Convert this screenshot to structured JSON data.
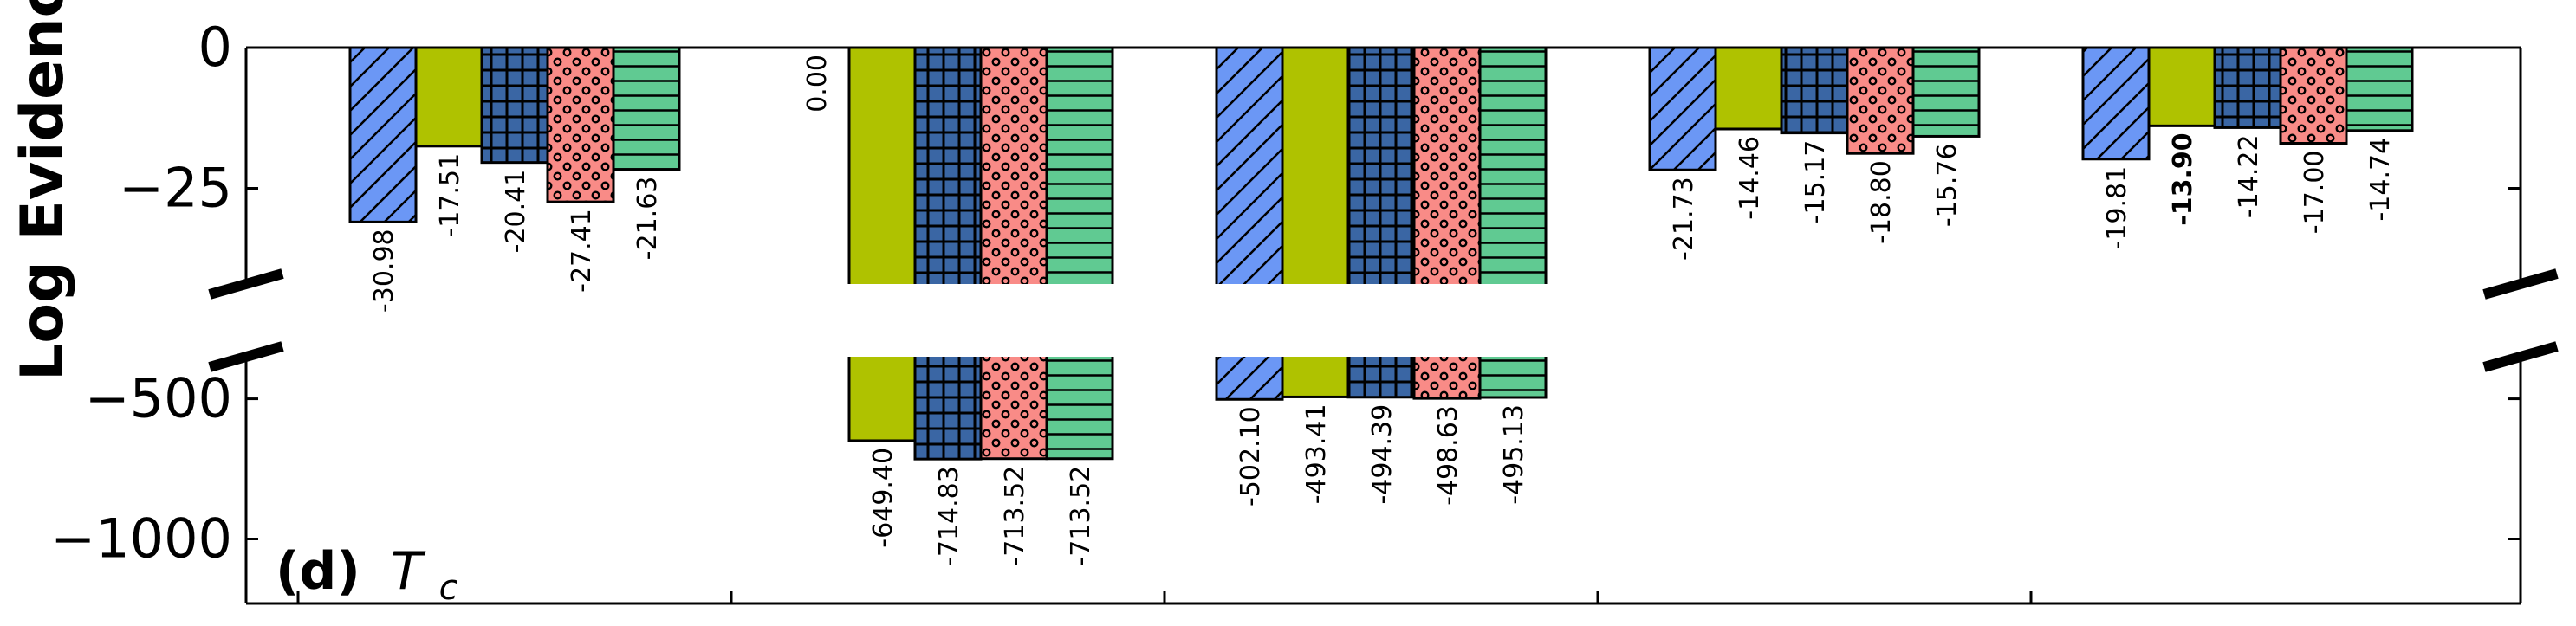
{
  "chart_data": {
    "type": "bar",
    "ylabel": "Log Evidence",
    "annotation": {
      "letter": "(d)",
      "symbol": "T",
      "subscript": "c"
    },
    "yticks_upper": [
      {
        "value": 0,
        "label": "0"
      },
      {
        "value": -25,
        "label": "−25"
      }
    ],
    "yticks_lower": [
      {
        "value": -500,
        "label": "−500"
      },
      {
        "value": -1000,
        "label": "−1000"
      }
    ],
    "upper_ylim": [
      -42,
      0
    ],
    "lower_ylim": [
      -1230,
      -350
    ],
    "axis_break": [
      -42,
      -350
    ],
    "groups": 5,
    "best_value": -13.9,
    "series": [
      {
        "values": [
          -30.98,
          null,
          -502.1,
          -21.73,
          -19.81
        ],
        "labels": [
          "-30.98",
          "",
          "-502.10",
          "-21.73",
          "-19.81"
        ],
        "color": "#6b97f5",
        "hatch": "diagonal"
      },
      {
        "values": [
          -17.51,
          -649.4,
          -493.41,
          -14.46,
          -13.9
        ],
        "labels": [
          "-17.51",
          "-649.40",
          "-493.41",
          "-14.46",
          "-13.90"
        ],
        "color": "#afc200",
        "hatch": "none"
      },
      {
        "values": [
          -20.41,
          -714.83,
          -494.39,
          -15.17,
          -14.22
        ],
        "labels": [
          "-20.41",
          "-714.83",
          "-494.39",
          "-15.17",
          "-14.22"
        ],
        "color": "#3a66a4",
        "hatch": "grid"
      },
      {
        "values": [
          -27.41,
          -713.52,
          -498.63,
          -18.8,
          -17.0
        ],
        "labels": [
          "-27.41",
          "-713.52",
          "-498.63",
          "-18.80",
          "-17.00"
        ],
        "color": "#f98b87",
        "hatch": "dots"
      },
      {
        "values": [
          -21.63,
          -713.52,
          -495.13,
          -15.76,
          -14.74
        ],
        "labels": [
          "-21.63",
          "-713.52",
          "-495.13",
          "-15.76",
          "-14.74"
        ],
        "color": "#60ca92",
        "hatch": "horizontal"
      }
    ],
    "zero_label": "0.00"
  }
}
